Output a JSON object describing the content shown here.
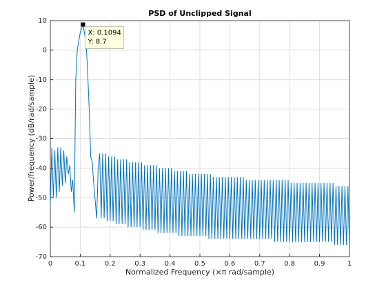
{
  "chart_data": {
    "type": "line",
    "title": "PSD of Unclipped Signal",
    "x_label": "Normalized Frequency  (×π rad/sample)",
    "y_label": "Power/frequency (dB/rad/sample)",
    "xlim": [
      0,
      1
    ],
    "xticks": [
      0,
      0.1,
      0.2,
      0.3,
      0.4,
      0.5,
      0.6,
      0.7,
      0.8,
      0.9,
      1
    ],
    "ylim": [
      -70,
      10
    ],
    "yticks": [
      -70,
      -60,
      -50,
      -40,
      -30,
      -20,
      -10,
      0,
      10
    ],
    "grid": true,
    "color": "#0072bd",
    "x": [
      0,
      0.005,
      0.01,
      0.015,
      0.02,
      0.025,
      0.03,
      0.035,
      0.04,
      0.045,
      0.05,
      0.055,
      0.06,
      0.065,
      0.07,
      0.075,
      0.08,
      0.085,
      0.09,
      0.1,
      0.1094,
      0.12,
      0.125,
      0.13,
      0.135,
      0.14,
      0.145,
      0.155,
      0.16,
      0.165,
      0.17,
      0.175,
      0.18,
      0.185,
      0.19,
      0.195,
      0.2,
      0.205,
      0.21,
      0.215,
      0.22,
      0.225,
      0.23,
      0.235,
      0.24,
      0.245,
      0.25,
      0.255,
      0.26,
      0.265,
      0.27,
      0.275,
      0.28,
      0.285,
      0.29,
      0.295,
      0.3,
      0.305,
      0.31,
      0.315,
      0.32,
      0.325,
      0.33,
      0.335,
      0.34,
      0.345,
      0.35,
      0.355,
      0.36,
      0.365,
      0.37,
      0.375,
      0.38,
      0.385,
      0.39,
      0.395,
      0.4,
      0.405,
      0.41,
      0.415,
      0.42,
      0.425,
      0.43,
      0.435,
      0.44,
      0.445,
      0.45,
      0.455,
      0.46,
      0.465,
      0.47,
      0.475,
      0.48,
      0.485,
      0.49,
      0.495,
      0.5,
      0.505,
      0.51,
      0.515,
      0.52,
      0.525,
      0.53,
      0.535,
      0.54,
      0.545,
      0.55,
      0.555,
      0.56,
      0.565,
      0.57,
      0.575,
      0.58,
      0.585,
      0.59,
      0.595,
      0.6,
      0.605,
      0.61,
      0.615,
      0.62,
      0.625,
      0.63,
      0.635,
      0.64,
      0.645,
      0.65,
      0.655,
      0.66,
      0.665,
      0.67,
      0.675,
      0.68,
      0.685,
      0.69,
      0.695,
      0.7,
      0.705,
      0.71,
      0.715,
      0.72,
      0.725,
      0.73,
      0.735,
      0.74,
      0.745,
      0.75,
      0.755,
      0.76,
      0.765,
      0.77,
      0.775,
      0.78,
      0.785,
      0.79,
      0.795,
      0.8,
      0.805,
      0.81,
      0.815,
      0.82,
      0.825,
      0.83,
      0.835,
      0.84,
      0.845,
      0.85,
      0.855,
      0.86,
      0.865,
      0.87,
      0.875,
      0.88,
      0.885,
      0.89,
      0.895,
      0.9,
      0.905,
      0.91,
      0.915,
      0.92,
      0.925,
      0.93,
      0.935,
      0.94,
      0.945,
      0.95,
      0.955,
      0.96,
      0.965,
      0.97,
      0.975,
      0.98,
      0.985,
      0.99,
      0.995,
      1
    ],
    "values": [
      -52,
      -33,
      -50,
      -34,
      -50,
      -33,
      -48,
      -33,
      -46,
      -34,
      -45,
      -36,
      -42,
      -39,
      -48,
      -44,
      -55,
      -10,
      0,
      6,
      8.7,
      2,
      -8,
      -20,
      -36,
      -38,
      -45,
      -57,
      -40,
      -35,
      -57,
      -35,
      -57,
      -35,
      -58,
      -36,
      -58,
      -36,
      -58,
      -36,
      -59,
      -37,
      -59,
      -37,
      -59,
      -37,
      -59,
      -37,
      -60,
      -38,
      -60,
      -38,
      -60,
      -38,
      -60,
      -38,
      -60,
      -38,
      -61,
      -39,
      -61,
      -39,
      -61,
      -39,
      -61,
      -39,
      -61,
      -39,
      -62,
      -40,
      -62,
      -40,
      -62,
      -40,
      -62,
      -40,
      -62,
      -40,
      -62,
      -41,
      -62,
      -41,
      -63,
      -41,
      -63,
      -41,
      -63,
      -41,
      -63,
      -42,
      -63,
      -42,
      -63,
      -42,
      -63,
      -42,
      -63,
      -42,
      -63,
      -42,
      -63,
      -42,
      -64,
      -42,
      -64,
      -43,
      -64,
      -43,
      -64,
      -43,
      -64,
      -43,
      -64,
      -43,
      -64,
      -43,
      -64,
      -43,
      -64,
      -43,
      -64,
      -43,
      -64,
      -43,
      -64,
      -43,
      -64,
      -44,
      -64,
      -44,
      -64,
      -44,
      -64,
      -44,
      -64,
      -44,
      -64,
      -44,
      -64,
      -44,
      -64,
      -44,
      -64,
      -44,
      -64,
      -44,
      -65,
      -44,
      -65,
      -44,
      -65,
      -44,
      -65,
      -44,
      -65,
      -44,
      -65,
      -45,
      -65,
      -45,
      -65,
      -45,
      -65,
      -45,
      -65,
      -45,
      -65,
      -45,
      -65,
      -45,
      -65,
      -45,
      -65,
      -45,
      -65,
      -45,
      -65,
      -45,
      -65,
      -45,
      -65,
      -45,
      -65,
      -45,
      -65,
      -45,
      -66,
      -46,
      -66,
      -46,
      -66,
      -46,
      -66,
      -46,
      -66,
      -46,
      -68
    ],
    "datatip": {
      "x": 0.1094,
      "y": 8.7,
      "lines": [
        "X: 0.1094",
        "Y: 8.7"
      ]
    }
  }
}
